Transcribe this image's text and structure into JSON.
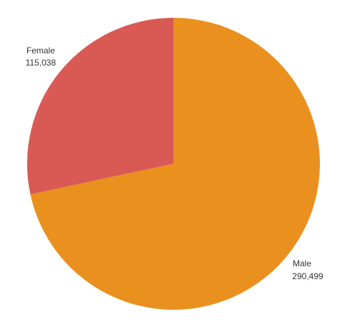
{
  "chart_data": {
    "type": "pie",
    "categories": [
      "Female",
      "Male"
    ],
    "values": [
      115038,
      290499
    ],
    "value_labels": [
      "115,038",
      "290,499"
    ],
    "colors": [
      "#d95a55",
      "#ea901f"
    ],
    "legend": "none"
  }
}
